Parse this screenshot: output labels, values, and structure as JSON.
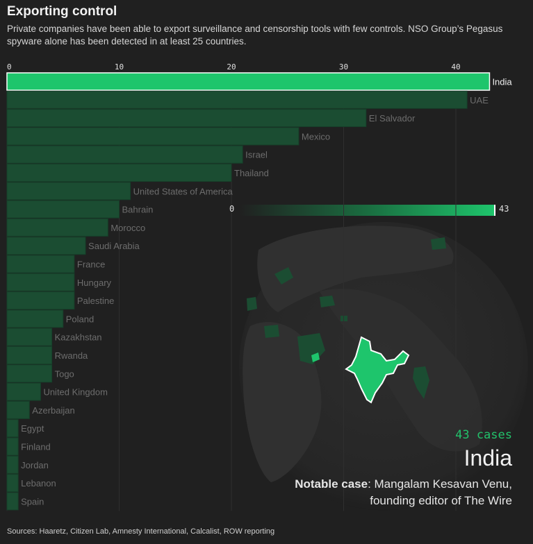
{
  "header": {
    "title": "Exporting control",
    "subtitle": "Private companies have been able to export surveillance and censorship tools with few controls. NSO Group’s Pegasus spyware alone has been detected in at least 25 countries."
  },
  "chart_data": {
    "type": "bar",
    "orientation": "horizontal",
    "x_ticks": [
      0,
      10,
      20,
      30,
      40
    ],
    "xlim": [
      0,
      43
    ],
    "grid": true,
    "highlight": "India",
    "categories": [
      "India",
      "UAE",
      "El Salvador",
      "Mexico",
      "Israel",
      "Thailand",
      "United States of America",
      "Bahrain",
      "Morocco",
      "Saudi Arabia",
      "France",
      "Hungary",
      "Palestine",
      "Poland",
      "Kazakhstan",
      "Rwanda",
      "Togo",
      "United Kingdom",
      "Azerbaijan",
      "Egypt",
      "Finland",
      "Jordan",
      "Lebanon",
      "Spain"
    ],
    "values": [
      43,
      41,
      32,
      26,
      21,
      20,
      11,
      10,
      9,
      7,
      6,
      6,
      6,
      5,
      4,
      4,
      4,
      3,
      2,
      1,
      1,
      1,
      1,
      1
    ],
    "colors": {
      "highlight": "#1ec56c",
      "bar": "#1b4d32",
      "bar_border": "#163f29"
    }
  },
  "legend": {
    "min_label": "0",
    "max_label": "43"
  },
  "detail": {
    "cases": "43 cases",
    "country": "India",
    "notable_label": "Notable case",
    "notable_text": ": Mangalam Kesavan Venu, founding editor of The Wire"
  },
  "footer": {
    "sources": "Sources: Haaretz, Citizen Lab, Amnesty International, Calcalist, ROW reporting"
  }
}
